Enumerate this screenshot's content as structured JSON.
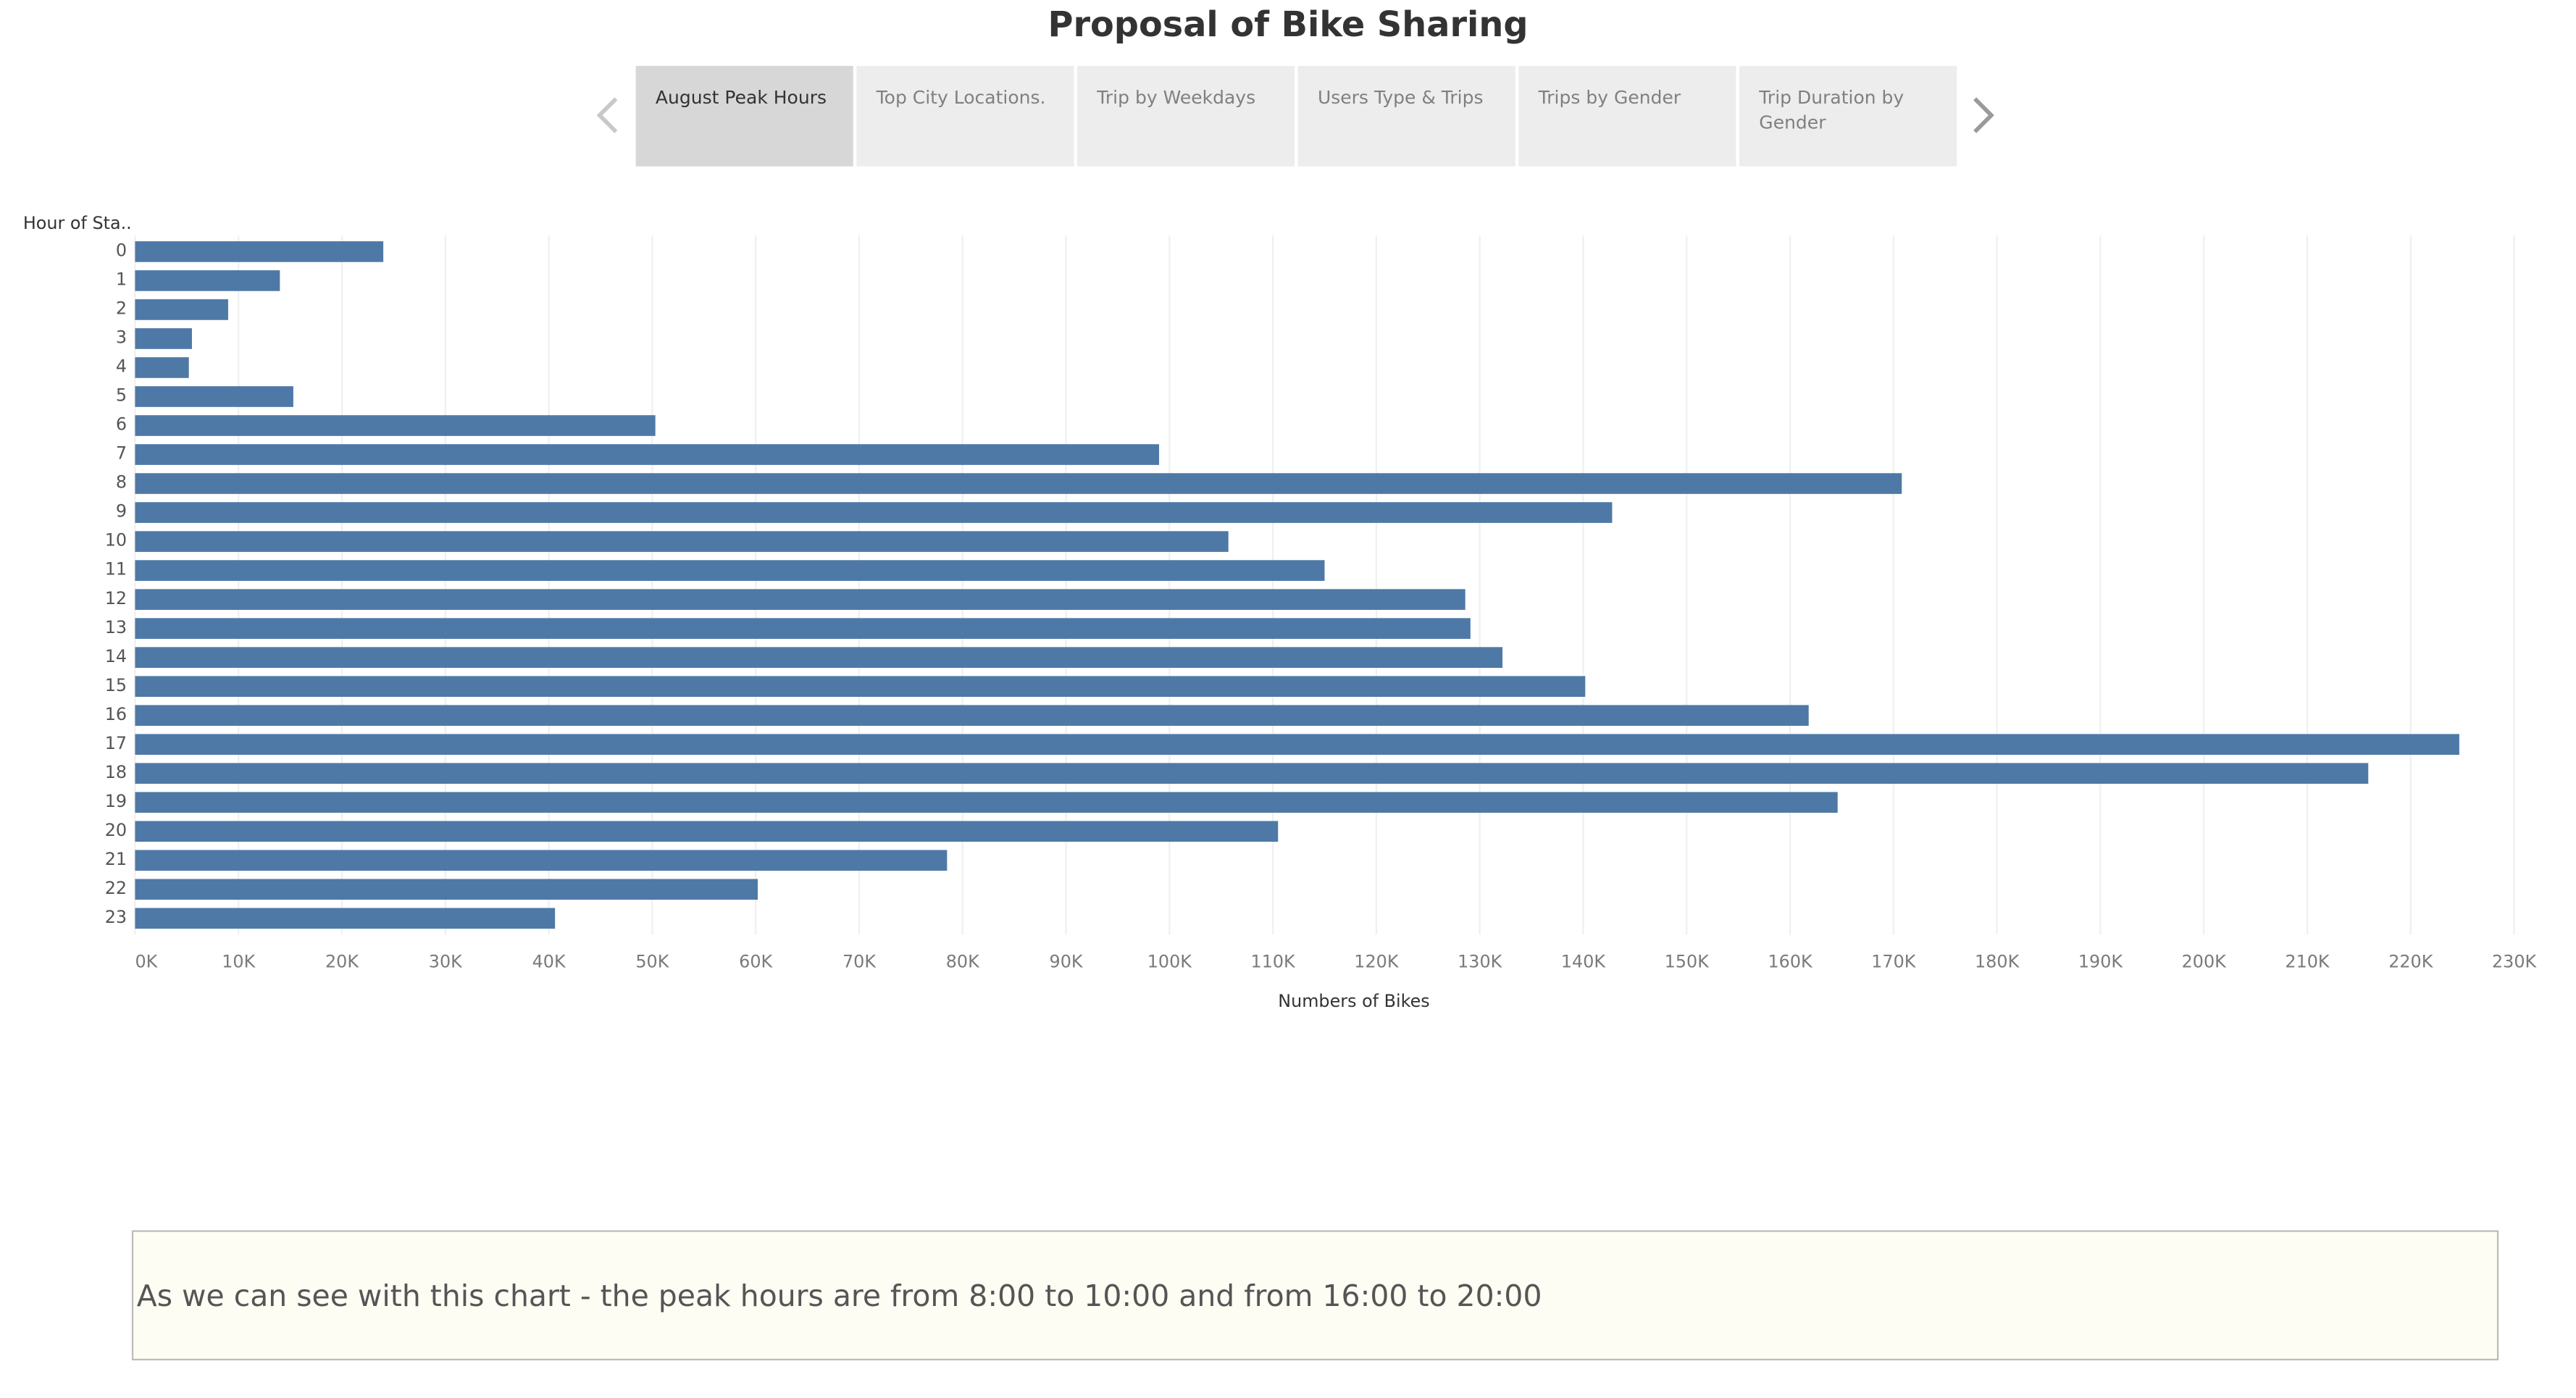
{
  "dashboard": {
    "title": "Proposal of Bike Sharing",
    "tabs": [
      {
        "label": "August Peak Hours",
        "active": true
      },
      {
        "label": "Top City Locations.",
        "active": false
      },
      {
        "label": "Trip by Weekdays",
        "active": false
      },
      {
        "label": "Users Type & Trips",
        "active": false
      },
      {
        "label": "Trips by Gender",
        "active": false
      },
      {
        "label": "Trip Duration by Gender",
        "active": false
      }
    ],
    "prev_icon": "chevron-left-icon",
    "next_icon": "chevron-right-icon"
  },
  "chart_data": {
    "type": "bar",
    "orientation": "horizontal",
    "row_header": "Hour of Sta..",
    "categories": [
      "0",
      "1",
      "2",
      "3",
      "4",
      "5",
      "6",
      "7",
      "8",
      "9",
      "10",
      "11",
      "12",
      "13",
      "14",
      "15",
      "16",
      "17",
      "18",
      "19",
      "20",
      "21",
      "22",
      "23"
    ],
    "values": [
      24000,
      14000,
      9000,
      5500,
      5200,
      15300,
      50300,
      99000,
      170800,
      142800,
      105700,
      115000,
      128600,
      129100,
      132200,
      140200,
      161800,
      224700,
      215900,
      164600,
      110500,
      78500,
      60200,
      40600
    ],
    "xlabel": "Numbers of Bikes",
    "xlim": [
      0,
      230000
    ],
    "x_ticks": [
      "0K",
      "10K",
      "20K",
      "30K",
      "40K",
      "50K",
      "60K",
      "70K",
      "80K",
      "90K",
      "100K",
      "110K",
      "120K",
      "130K",
      "140K",
      "150K",
      "160K",
      "170K",
      "180K",
      "190K",
      "200K",
      "210K",
      "220K",
      "230K"
    ],
    "bar_color": "#4e79a7",
    "grid": true
  },
  "caption": {
    "text": "As we can see with this chart - the peak hours are from 8:00 to 10:00 and from 16:00 to 20:00"
  }
}
